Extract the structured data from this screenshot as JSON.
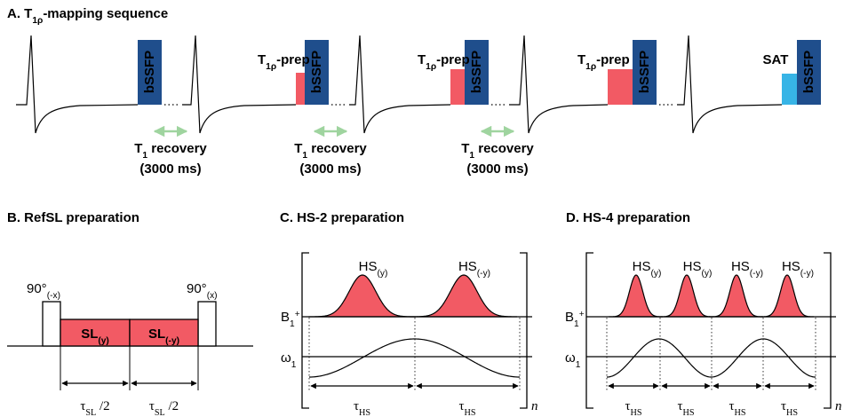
{
  "panel_a": {
    "title": {
      "text": "A. T",
      "sub": "1ρ",
      "rest": "-mapping sequence"
    },
    "readouts": [
      "bSSFP",
      "bSSFP",
      "bSSFP",
      "bSSFP",
      "bSSFP"
    ],
    "preps": [
      {
        "text": "T",
        "sub": "1ρ",
        "rest": "-prep"
      },
      {
        "text": "T",
        "sub": "1ρ",
        "rest": "-prep"
      },
      {
        "text": "T",
        "sub": "1ρ",
        "rest": "-prep"
      }
    ],
    "saturation": "SAT",
    "recoveries": [
      {
        "text": "T",
        "sub": "1",
        "rest": " recovery",
        "line2": "(3000 ms)"
      },
      {
        "text": "T",
        "sub": "1",
        "rest": " recovery",
        "line2": "(3000 ms)"
      },
      {
        "text": "T",
        "sub": "1",
        "rest": " recovery",
        "line2": "(3000 ms)"
      }
    ]
  },
  "panel_b": {
    "title": "B. RefSL preparation",
    "pulses": [
      {
        "text": "90°",
        "sub": "(-x)"
      },
      {
        "text": "90°",
        "sub": "(x)"
      }
    ],
    "spin_locks": [
      {
        "text": "SL",
        "sub": "(y)"
      },
      {
        "text": "SL",
        "sub": "(-y)"
      }
    ],
    "durations": [
      {
        "text": "τ",
        "sub": "SL",
        "rest": " /2"
      },
      {
        "text": "τ",
        "sub": "SL",
        "rest": " /2"
      }
    ]
  },
  "panel_c": {
    "title": "C. HS-2 preparation",
    "pulses": [
      {
        "text": "HS",
        "sub": "(y)"
      },
      {
        "text": "HS",
        "sub": "(-y)"
      }
    ],
    "b1_axis": {
      "text": "B",
      "sub": "1",
      "sup": "+"
    },
    "w1_axis": {
      "text": "ω",
      "sub": "1"
    },
    "durations": [
      {
        "text": "τ",
        "sub": "HS"
      },
      {
        "text": "τ",
        "sub": "HS"
      }
    ],
    "repeat": "n"
  },
  "panel_d": {
    "title": "D. HS-4 preparation",
    "pulses": [
      {
        "text": "HS",
        "sub": "(y)"
      },
      {
        "text": "HS",
        "sub": "(y)"
      },
      {
        "text": "HS",
        "sub": "(-y)"
      },
      {
        "text": "HS",
        "sub": "(-y)"
      }
    ],
    "b1_axis": {
      "text": "B",
      "sub": "1",
      "sup": "+"
    },
    "w1_axis": {
      "text": "ω",
      "sub": "1"
    },
    "durations": [
      {
        "text": "τ",
        "sub": "HS"
      },
      {
        "text": "τ",
        "sub": "HS"
      },
      {
        "text": "τ",
        "sub": "HS"
      },
      {
        "text": "τ",
        "sub": "HS"
      }
    ],
    "repeat": "n"
  }
}
